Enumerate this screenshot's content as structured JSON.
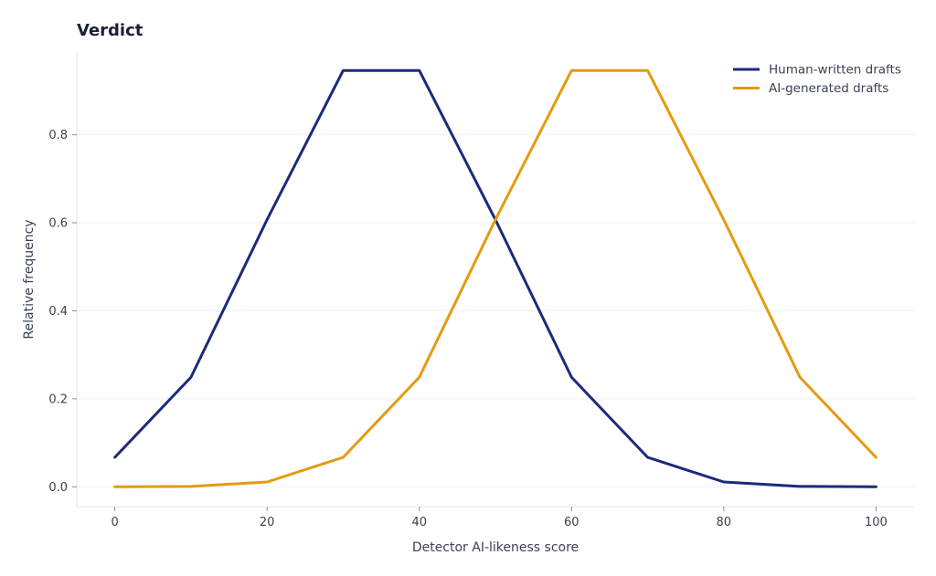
{
  "chart_data": {
    "type": "line",
    "title": "Verdict",
    "xlabel": "Detector AI-likeness score",
    "ylabel": "Relative frequency",
    "x": [
      0,
      10,
      20,
      30,
      40,
      50,
      60,
      70,
      80,
      90,
      100
    ],
    "xlim": [
      -5,
      105
    ],
    "ylim": [
      -0.045,
      0.99
    ],
    "xticks": [
      0,
      20,
      40,
      60,
      80,
      100
    ],
    "xtick_labels": [
      "0",
      "20",
      "40",
      "60",
      "80",
      "100"
    ],
    "yticks": [
      0.0,
      0.2,
      0.4,
      0.6,
      0.8
    ],
    "ytick_labels": [
      "0.0",
      "0.2",
      "0.4",
      "0.6",
      "0.8"
    ],
    "grid": "horizontal",
    "legend_position": "top-right",
    "series": [
      {
        "name": "Human-written drafts",
        "color": "#1b2a7a",
        "values": [
          0.067,
          0.249,
          0.607,
          0.946,
          0.946,
          0.607,
          0.249,
          0.067,
          0.011,
          0.001,
          0.0
        ]
      },
      {
        "name": "AI-generated drafts",
        "color": "#e49b0f",
        "values": [
          0.0,
          0.001,
          0.011,
          0.067,
          0.249,
          0.607,
          0.946,
          0.946,
          0.607,
          0.249,
          0.067
        ]
      }
    ]
  }
}
